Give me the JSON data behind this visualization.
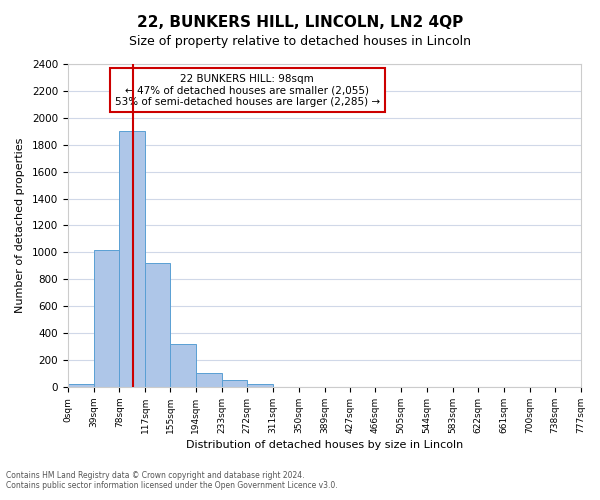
{
  "title": "22, BUNKERS HILL, LINCOLN, LN2 4QP",
  "subtitle": "Size of property relative to detached houses in Lincoln",
  "xlabel": "Distribution of detached houses by size in Lincoln",
  "ylabel": "Number of detached properties",
  "bar_color": "#aec6e8",
  "bar_edge_color": "#5a9fd4",
  "vline_x": 98,
  "vline_color": "#cc0000",
  "annotation_title": "22 BUNKERS HILL: 98sqm",
  "annotation_line1": "← 47% of detached houses are smaller (2,055)",
  "annotation_line2": "53% of semi-detached houses are larger (2,285) →",
  "annotation_box_edge": "#cc0000",
  "bins": [
    0,
    39,
    78,
    117,
    155,
    194,
    233,
    272,
    311,
    350,
    389,
    427,
    466,
    505,
    544,
    583,
    622,
    661,
    700,
    738,
    777
  ],
  "bin_labels": [
    "0sqm",
    "39sqm",
    "78sqm",
    "117sqm",
    "155sqm",
    "194sqm",
    "233sqm",
    "272sqm",
    "311sqm",
    "350sqm",
    "389sqm",
    "427sqm",
    "466sqm",
    "505sqm",
    "544sqm",
    "583sqm",
    "622sqm",
    "661sqm",
    "700sqm",
    "738sqm",
    "777sqm"
  ],
  "counts": [
    20,
    1020,
    1900,
    920,
    320,
    105,
    50,
    25,
    0,
    0,
    0,
    0,
    0,
    0,
    0,
    0,
    0,
    0,
    0,
    0
  ],
  "ylim": [
    0,
    2400
  ],
  "yticks": [
    0,
    200,
    400,
    600,
    800,
    1000,
    1200,
    1400,
    1600,
    1800,
    2000,
    2200,
    2400
  ],
  "footer_line1": "Contains HM Land Registry data © Crown copyright and database right 2024.",
  "footer_line2": "Contains public sector information licensed under the Open Government Licence v3.0.",
  "bg_color": "#ffffff",
  "grid_color": "#d0d8e8"
}
